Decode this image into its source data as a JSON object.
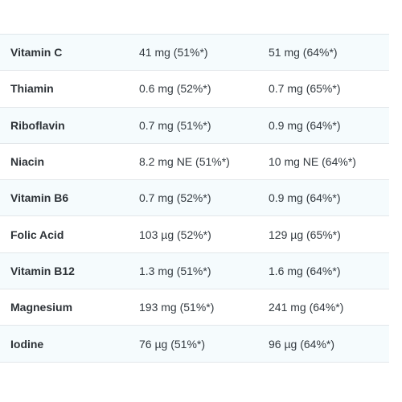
{
  "nutrition_table": {
    "rows": [
      {
        "nutrient": "Vitamin C",
        "value_a": "41 mg (51%*)",
        "value_b": "51 mg (64%*)"
      },
      {
        "nutrient": "Thiamin",
        "value_a": "0.6 mg (52%*)",
        "value_b": "0.7 mg (65%*)"
      },
      {
        "nutrient": "Riboflavin",
        "value_a": "0.7 mg (51%*)",
        "value_b": "0.9 mg (64%*)"
      },
      {
        "nutrient": "Niacin",
        "value_a": "8.2 mg NE (51%*)",
        "value_b": "10 mg NE (64%*)"
      },
      {
        "nutrient": "Vitamin B6",
        "value_a": "0.7 mg (52%*)",
        "value_b": "0.9 mg (64%*)"
      },
      {
        "nutrient": "Folic Acid",
        "value_a": "103 µg (52%*)",
        "value_b": "129 µg (65%*)"
      },
      {
        "nutrient": "Vitamin B12",
        "value_a": "1.3 mg (51%*)",
        "value_b": "1.6 mg (64%*)"
      },
      {
        "nutrient": "Magnesium",
        "value_a": "193 mg (51%*)",
        "value_b": "241 mg (64%*)"
      },
      {
        "nutrient": "Iodine",
        "value_a": "76 µg (51%*)",
        "value_b": "96 µg (64%*)"
      }
    ]
  },
  "colors": {
    "row_shade": "#f5fbfd",
    "divider": "#e3e7ea",
    "text": "#333a40"
  }
}
